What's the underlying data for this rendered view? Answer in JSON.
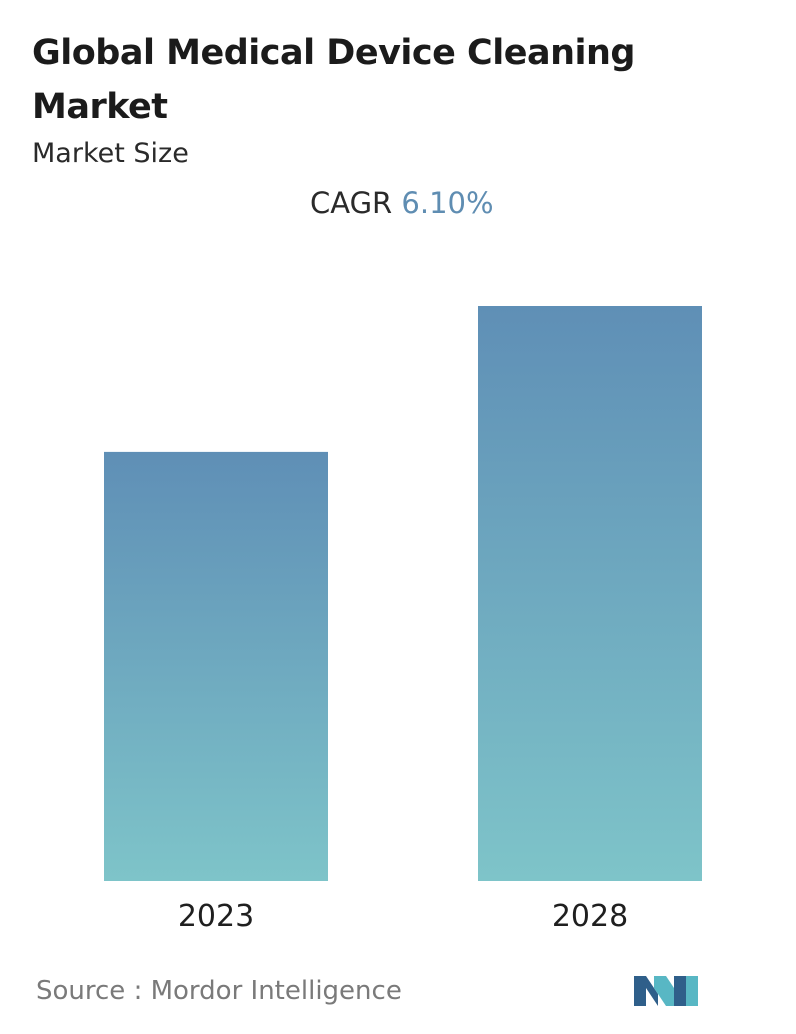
{
  "title": "Global Medical Device Cleaning Market",
  "subtitle": "Market Size",
  "cagr": {
    "label": "CAGR",
    "value": "6.10%"
  },
  "source": {
    "label": "Source :",
    "name": "Mordor Intelligence"
  },
  "colors": {
    "bar_top": "#5f8fb6",
    "bar_bottom": "#7ec4c9",
    "cagr_accent": "#5f8db2",
    "logo_dark": "#2f5f8a",
    "logo_light": "#58b7c4"
  },
  "chart_data": {
    "type": "bar",
    "categories": [
      "2023",
      "2028"
    ],
    "values": [
      100,
      134
    ],
    "title": "Global Medical Device Cleaning Market",
    "xlabel": "",
    "ylabel": "",
    "ylim": [
      0,
      134
    ],
    "grid": false,
    "legend": "none",
    "value_labels_shown": false
  }
}
